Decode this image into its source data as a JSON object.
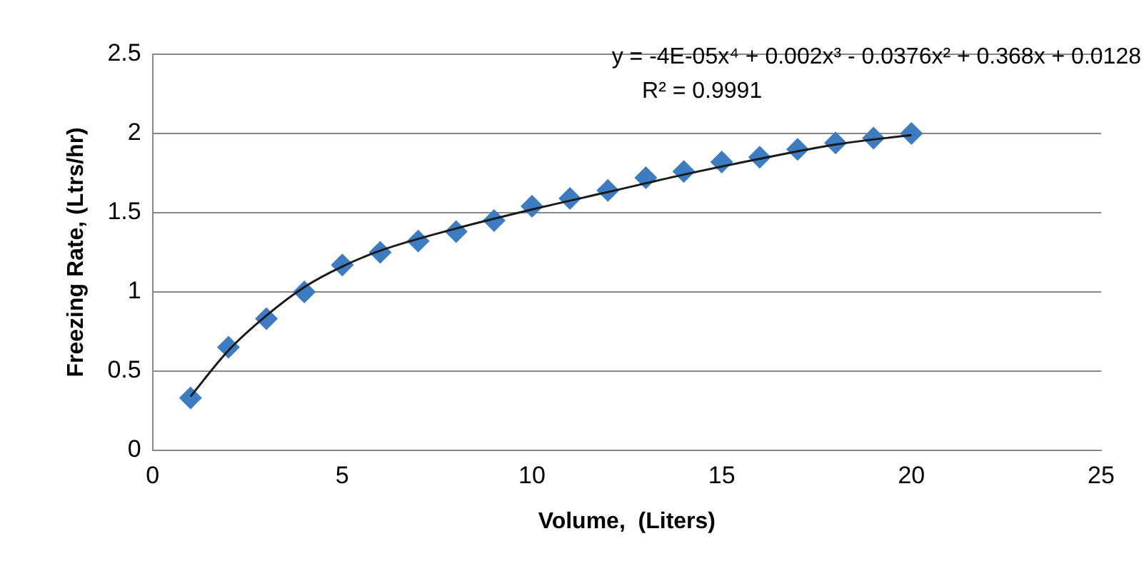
{
  "chart_data": {
    "type": "scatter",
    "xlabel": "Volume,  (Liters)",
    "ylabel": "Freezing Rate, (Ltrs/hr)",
    "xlim": [
      0,
      25
    ],
    "xticks": [
      0,
      5,
      10,
      15,
      20,
      25
    ],
    "ylim": [
      0,
      2.5
    ],
    "yticks": [
      0,
      0.5,
      1,
      1.5,
      2,
      2.5
    ],
    "grid": "y",
    "legend": false,
    "marker": "diamond",
    "annotations": [
      "y = -4E-05x⁴ + 0.002x³ - 0.0376x² + 0.368x + 0.0128",
      "R² = 0.9991"
    ],
    "series": [
      {
        "type": "scatter",
        "color": "#3d7cc0",
        "x": [
          1,
          2,
          3,
          4,
          5,
          6,
          7,
          8,
          9,
          10,
          11,
          12,
          13,
          14,
          15,
          16,
          17,
          18,
          19,
          20
        ],
        "values": [
          0.33,
          0.65,
          0.83,
          1.0,
          1.17,
          1.25,
          1.32,
          1.38,
          1.45,
          1.54,
          1.59,
          1.64,
          1.72,
          1.76,
          1.82,
          1.85,
          1.9,
          1.94,
          1.97,
          2.0
        ]
      },
      {
        "type": "line",
        "color": "#1a1a1a",
        "marker": "none",
        "x": [
          1,
          2,
          3,
          4,
          5,
          6,
          8,
          10,
          12,
          14,
          16,
          18,
          20
        ],
        "values": [
          0.34,
          0.63,
          0.85,
          1.03,
          1.16,
          1.26,
          1.4,
          1.52,
          1.63,
          1.74,
          1.84,
          1.93,
          1.99
        ]
      }
    ]
  }
}
